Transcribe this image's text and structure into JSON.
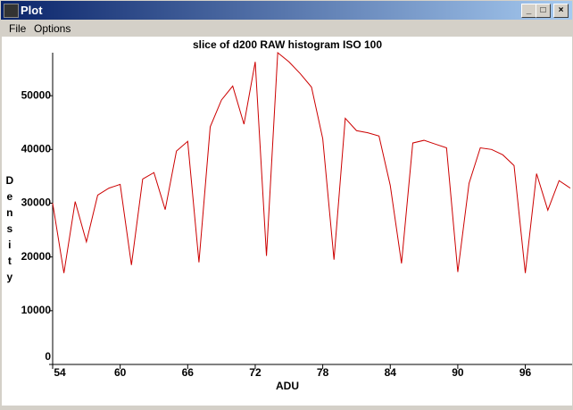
{
  "window": {
    "title": "Plot",
    "menu": [
      "File",
      "Options"
    ]
  },
  "chart_data": {
    "type": "line",
    "title": "slice of d200 RAW histogram ISO 100",
    "x_label": "ADU",
    "y_label": "Density",
    "x": [
      54,
      55,
      56,
      57,
      58,
      59,
      60,
      61,
      62,
      63,
      64,
      65,
      66,
      67,
      68,
      69,
      70,
      71,
      72,
      73,
      74,
      75,
      76,
      77,
      78,
      79,
      80,
      81,
      82,
      83,
      84,
      85,
      86,
      87,
      88,
      89,
      90,
      91,
      92,
      93,
      94,
      95,
      96,
      97,
      98,
      99,
      100
    ],
    "series": [
      {
        "name": "density",
        "color": "#cc0000",
        "values": [
          30000,
          17000,
          30300,
          22800,
          31500,
          32800,
          33500,
          18500,
          34500,
          35700,
          28800,
          39700,
          41500,
          19000,
          44200,
          49200,
          51800,
          44700,
          56300,
          20200,
          58000,
          56300,
          54100,
          51600,
          42000,
          19500,
          45800,
          43500,
          43100,
          42500,
          33300,
          18800,
          41200,
          41700,
          41000,
          40300,
          17200,
          33700,
          40300,
          40000,
          39000,
          37000,
          17000,
          35500,
          28700,
          34200,
          32800
        ]
      }
    ],
    "xlim": [
      54,
      100
    ],
    "ylim": [
      0,
      58000
    ],
    "xticks": [
      54,
      60,
      66,
      72,
      78,
      84,
      90,
      96
    ],
    "yticks": [
      0,
      10000,
      20000,
      30000,
      40000,
      50000
    ]
  }
}
